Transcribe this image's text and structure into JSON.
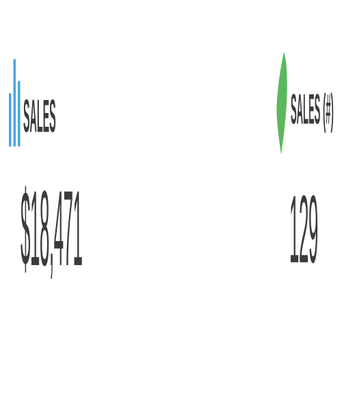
{
  "widgets": [
    {
      "label": "SALES",
      "value": "$18,471",
      "icon": "bar-chart-icon",
      "icon_color": "#4da3e0"
    },
    {
      "label": "SALES (#)",
      "value": "129",
      "icon": "leaf-icon",
      "icon_color": "#5cb85c"
    }
  ]
}
